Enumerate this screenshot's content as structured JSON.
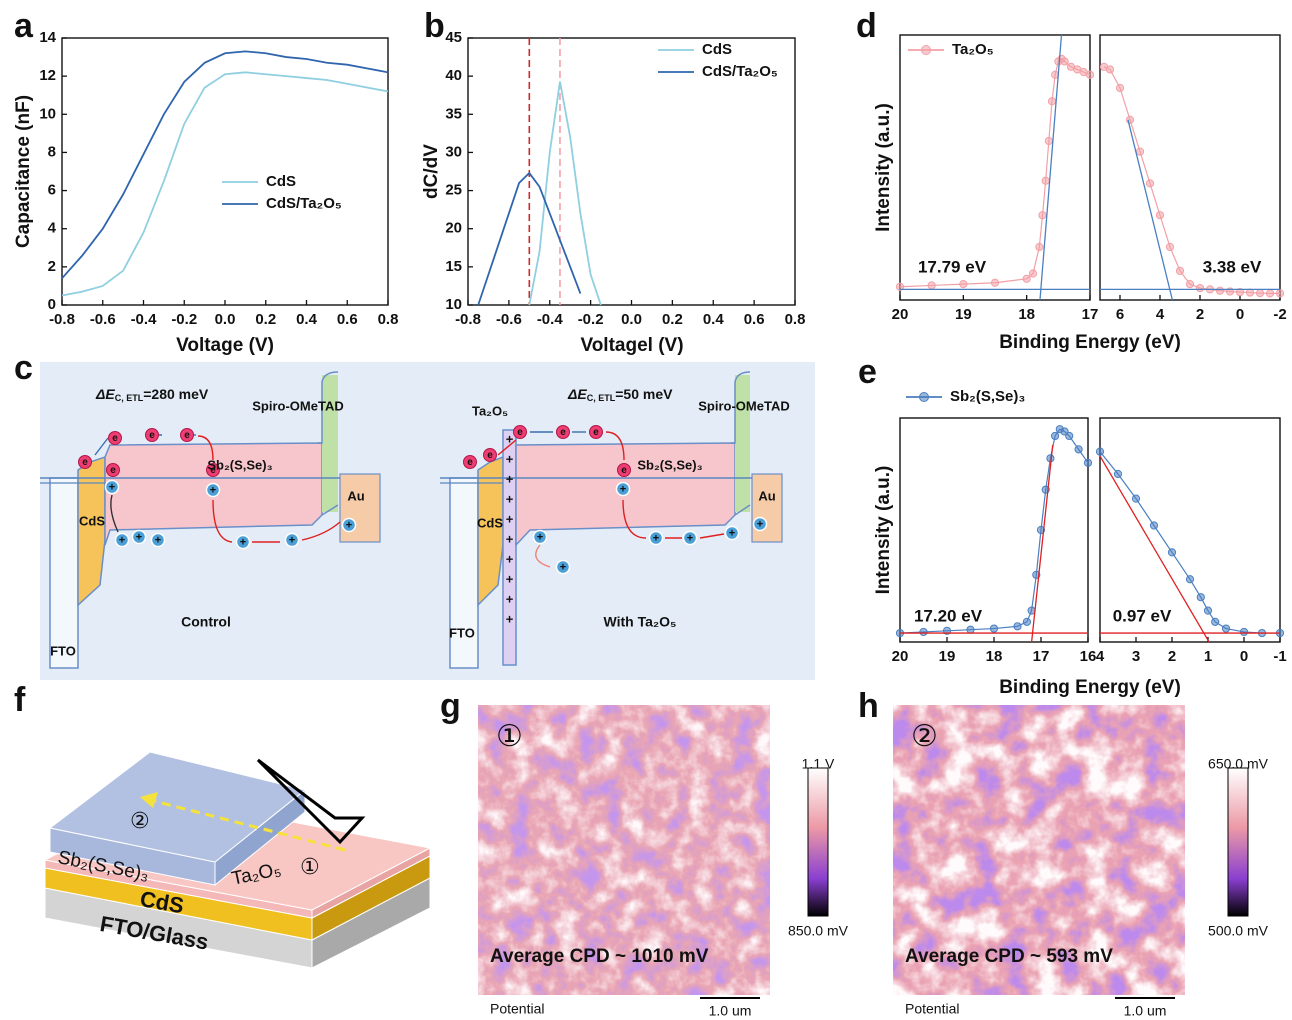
{
  "panel_labels": [
    "a",
    "b",
    "c",
    "d",
    "e",
    "f",
    "g",
    "h"
  ],
  "chart_data": [
    {
      "type": "line",
      "xlabel": "Voltage (V)",
      "ylabel": "Capacitance (nF)",
      "x": [
        -0.8,
        -0.7,
        -0.6,
        -0.5,
        -0.4,
        -0.3,
        -0.2,
        -0.1,
        0,
        0.1,
        0.2,
        0.3,
        0.4,
        0.5,
        0.6,
        0.7,
        0.8
      ],
      "series": [
        {
          "name": "CdS",
          "color": "#8fcfe0",
          "values": [
            0.5,
            0.7,
            1.0,
            1.8,
            3.8,
            6.5,
            9.5,
            11.4,
            12.1,
            12.2,
            12.1,
            12.0,
            11.9,
            11.8,
            11.6,
            11.4,
            11.2
          ]
        },
        {
          "name": "CdS/Ta₂O₅",
          "color": "#2f65ad",
          "values": [
            1.4,
            2.6,
            4.0,
            5.8,
            7.9,
            10.0,
            11.7,
            12.7,
            13.2,
            13.3,
            13.2,
            13.0,
            12.9,
            12.7,
            12.6,
            12.4,
            12.2
          ]
        }
      ],
      "xlim": [
        -0.8,
        0.8
      ],
      "ylim": [
        0,
        14
      ],
      "xticks": [
        -0.8,
        -0.6,
        -0.4,
        -0.2,
        {
          "value": 0,
          "label": "0.0"
        },
        0.2,
        0.4,
        0.6,
        0.8
      ],
      "yticks": [
        0,
        2,
        4,
        6,
        8,
        10,
        12,
        14
      ]
    },
    {
      "type": "line",
      "xlabel": "Voltagel (V)",
      "ylabel": "dC/dV",
      "x": [
        -0.75,
        -0.7,
        -0.65,
        -0.6,
        -0.55,
        -0.5,
        -0.45,
        -0.4,
        -0.35,
        -0.3,
        -0.25,
        -0.2,
        -0.15
      ],
      "series": [
        {
          "name": "CdS",
          "color": "#8fcfe0",
          "values": [
            null,
            null,
            null,
            null,
            null,
            10,
            17,
            30,
            39.3,
            32,
            22,
            14,
            10
          ]
        },
        {
          "name": "CdS/Ta₂O₅",
          "color": "#2f65ad",
          "values": [
            10,
            14,
            18,
            22,
            26,
            27.3,
            25.5,
            22,
            18.5,
            15,
            11.5,
            null,
            null
          ]
        }
      ],
      "reference_lines": [
        {
          "x": -0.5,
          "color": "#d62728"
        },
        {
          "x": -0.35,
          "color": "#f4a0a8"
        }
      ],
      "xlim": [
        -0.8,
        0.8
      ],
      "ylim": [
        10,
        45
      ],
      "xticks": [
        -0.8,
        -0.6,
        -0.4,
        -0.2,
        {
          "value": 0,
          "label": "0.0"
        },
        0.2,
        0.4,
        0.6,
        0.8
      ],
      "yticks": [
        10,
        15,
        20,
        25,
        30,
        35,
        40,
        45
      ]
    },
    {
      "type": "line",
      "markers": true,
      "xlabel": "Binding Energy (eV)",
      "ylabel": "Intensity (a.u.)",
      "x": [
        20,
        19.5,
        19,
        18.5,
        18,
        17.9,
        17.8,
        17.75,
        17.7,
        17.65,
        17.6,
        17.55,
        17.5,
        17.45,
        17.4,
        17.3,
        17.2,
        17.1,
        17
      ],
      "series": [
        {
          "name": "Ta₂O₅",
          "color": "#f2a0a6",
          "values": [
            5,
            5.5,
            6,
            6.5,
            8,
            10,
            20,
            32,
            45,
            60,
            75,
            85,
            90,
            91,
            90,
            88,
            87,
            86,
            85
          ]
        }
      ],
      "fit_lines": [
        {
          "x": [
            17.79,
            17.45
          ],
          "y": [
            0,
            100
          ],
          "color": "#4a7fc1"
        },
        {
          "x": [
            20,
            17
          ],
          "y": [
            4,
            4
          ],
          "color": "#4a7fc1"
        }
      ],
      "annotations": [
        {
          "text": "17.79 eV",
          "color": "#f2a0a6"
        }
      ],
      "xlim": [
        20,
        17
      ],
      "ylim": [
        0,
        100
      ],
      "xticks": [
        20,
        19,
        18,
        17
      ]
    },
    {
      "type": "line",
      "markers": true,
      "x": [
        6.8,
        6.5,
        6,
        5.5,
        5,
        4.5,
        4,
        3.5,
        3,
        2.5,
        2,
        1.5,
        1,
        0.5,
        0,
        -0.5,
        -1,
        -1.5,
        -2
      ],
      "series": [
        {
          "color": "#f2a0a6",
          "values": [
            88,
            87,
            80,
            68,
            56,
            44,
            32,
            20,
            11,
            6,
            4.5,
            4,
            3.5,
            3.2,
            3,
            2.8,
            2.6,
            2.5,
            2.5
          ]
        }
      ],
      "fit_lines": [
        {
          "x": [
            5.6,
            3.38
          ],
          "y": [
            68,
            0
          ],
          "color": "#4a7fc1"
        },
        {
          "x": [
            7,
            -2
          ],
          "y": [
            4,
            4
          ],
          "color": "#4a7fc1"
        }
      ],
      "annotations": [
        {
          "text": "3.38 eV",
          "color": "#f2a0a6"
        }
      ],
      "xlim": [
        7,
        -2
      ],
      "ylim": [
        0,
        100
      ],
      "xticks": [
        6,
        4,
        2,
        0,
        -2
      ]
    },
    {
      "type": "line",
      "markers": true,
      "xlabel": "Binding Energy (eV)",
      "ylabel": "Intensity (a.u.)",
      "x": [
        20,
        19.5,
        19,
        18.5,
        18,
        17.5,
        17.3,
        17.2,
        17.1,
        17,
        16.9,
        16.8,
        16.7,
        16.6,
        16.5,
        16.4,
        16.2,
        16
      ],
      "series": [
        {
          "name": "Sb₂(S,Se)₃",
          "color": "#4a7fc1",
          "values": [
            4,
            4.5,
            5,
            5.5,
            6,
            7,
            9,
            14,
            30,
            50,
            68,
            82,
            92,
            95,
            94,
            92,
            86,
            80
          ]
        }
      ],
      "fit_lines": [
        {
          "x": [
            17.2,
            16.75
          ],
          "y": [
            0,
            88
          ],
          "color": "#e02020"
        },
        {
          "x": [
            20,
            16
          ],
          "y": [
            4,
            4
          ],
          "color": "#e02020"
        }
      ],
      "annotations": [
        {
          "text": "17.20 eV",
          "color": "#4a7fc1"
        }
      ],
      "xlim": [
        20,
        16
      ],
      "ylim": [
        0,
        100
      ],
      "xticks": [
        20,
        19,
        18,
        17,
        16
      ]
    },
    {
      "type": "line",
      "markers": true,
      "x": [
        4,
        3.5,
        3,
        2.5,
        2,
        1.5,
        1.2,
        1,
        0.8,
        0.5,
        0,
        -0.5,
        -1
      ],
      "series": [
        {
          "color": "#4a7fc1",
          "values": [
            85,
            75,
            64,
            52,
            40,
            28,
            20,
            14,
            9,
            6,
            4.5,
            4,
            4
          ]
        }
      ],
      "fit_lines": [
        {
          "x": [
            4,
            0.97
          ],
          "y": [
            83,
            0
          ],
          "color": "#e02020"
        },
        {
          "x": [
            4,
            -1
          ],
          "y": [
            4,
            4
          ],
          "color": "#e02020"
        }
      ],
      "annotations": [
        {
          "text": "0.97 eV",
          "color": "#4a7fc1"
        }
      ],
      "xlim": [
        4,
        -1
      ],
      "ylim": [
        0,
        100
      ],
      "xticks": [
        4,
        3,
        2,
        1,
        0,
        -1
      ]
    }
  ],
  "diagram_c": {
    "left": {
      "delta_symbol": "ΔE",
      "delta_sub": "C, ETL",
      "delta_value": "=280 meV",
      "spiro": "Spiro-OMeTAD",
      "absorber": "Sb₂(S,Se)₃",
      "cds": "CdS",
      "fto": "FTO",
      "au": "Au",
      "caption": "Control"
    },
    "right": {
      "ta2o5": "Ta₂O₅",
      "delta_symbol": "ΔE",
      "delta_sub": "C, ETL",
      "delta_value": "=50 meV",
      "spiro": "Spiro-OMeTAD",
      "absorber": "Sb₂(S,Se)₃",
      "cds": "CdS",
      "fto": "FTO",
      "au": "Au",
      "caption": "With Ta₂O₅"
    },
    "electron_label": "e",
    "hole_label": "+"
  },
  "diagram_f": {
    "region2": "②",
    "absorber": "Sb₂(S,Se)₃",
    "ta2o5": "Ta₂O₅",
    "region1": "①",
    "cds": "CdS",
    "substrate": "FTO/Glass"
  },
  "kpfm": {
    "g": {
      "marker": "①",
      "average": "Average CPD ~ 1010 mV",
      "channel": "Potential",
      "scale": "1.0 um",
      "cbar_max": "1.1 V",
      "cbar_min": "850.0 mV"
    },
    "h": {
      "marker": "②",
      "average": "Average CPD ~ 593 mV",
      "channel": "Potential",
      "scale": "1.0 um",
      "cbar_max": "650.0 mV",
      "cbar_min": "500.0 mV"
    }
  }
}
